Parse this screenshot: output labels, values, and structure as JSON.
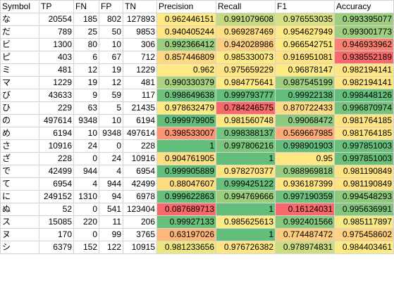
{
  "headers": [
    "Symbol",
    "TP",
    "FN",
    "FP",
    "TN",
    "Precision",
    "Recall",
    "F1",
    "Accuracy"
  ],
  "rows": [
    [
      "な",
      "20554",
      "185",
      "802",
      "127893",
      "0.962446151",
      "0.991079608",
      "0.976553035",
      "0.993395077"
    ],
    [
      "だ",
      "789",
      "25",
      "50",
      "9853",
      "0.940405244",
      "0.969287469",
      "0.954627949",
      "0.993001773"
    ],
    [
      "ビ",
      "1300",
      "80",
      "10",
      "306",
      "0.992366412",
      "0.942028986",
      "0.966542751",
      "0.946933962"
    ],
    [
      "ピ",
      "403",
      "6",
      "67",
      "712",
      "0.857446809",
      "0.985330073",
      "0.916951081",
      "0.938552189"
    ],
    [
      "ミ",
      "481",
      "12",
      "19",
      "1229",
      "0.962",
      "0.975659229",
      "0.96878147",
      "0.982194141"
    ],
    [
      "マ",
      "1229",
      "19",
      "12",
      "481",
      "0.990330379",
      "0.984775641",
      "0.987545199",
      "0.982194141"
    ],
    [
      "び",
      "43633",
      "9",
      "59",
      "117",
      "0.998649638",
      "0.999793777",
      "0.99922138",
      "0.998448126"
    ],
    [
      "ひ",
      "229",
      "63",
      "5",
      "21435",
      "0.978632479",
      "0.784246575",
      "0.870722433",
      "0.996870974"
    ],
    [
      "の",
      "497614",
      "9348",
      "10",
      "6194",
      "0.999979905",
      "0.981560748",
      "0.99068472",
      "0.981764185"
    ],
    [
      "め",
      "6194",
      "10",
      "9348",
      "497614",
      "0.398533007",
      "0.998388137",
      "0.569667985",
      "0.981764185"
    ],
    [
      "さ",
      "10916",
      "24",
      "0",
      "228",
      "1",
      "0.997806216",
      "0.998901903",
      "0.997851003"
    ],
    [
      "ざ",
      "228",
      "0",
      "24",
      "10916",
      "0.904761905",
      "1",
      "0.95",
      "0.997851003"
    ],
    [
      "で",
      "42499",
      "944",
      "4",
      "6954",
      "0.999905889",
      "0.978270377",
      "0.988969818",
      "0.981190849"
    ],
    [
      "て",
      "6954",
      "4",
      "944",
      "42499",
      "0.88047607",
      "0.999425122",
      "0.936187399",
      "0.981190849"
    ],
    [
      "に",
      "249152",
      "1310",
      "94",
      "6978",
      "0.999622863",
      "0.994769666",
      "0.997190359",
      "0.994548293"
    ],
    [
      "ぬ",
      "52",
      "0",
      "541",
      "123404",
      "0.087689713",
      "1",
      "0.16124031",
      "0.995636991"
    ],
    [
      "ス",
      "15085",
      "220",
      "11",
      "206",
      "0.99927133",
      "0.985625613",
      "0.992401566",
      "0.985117897"
    ],
    [
      "ヌ",
      "170",
      "0",
      "99",
      "3765",
      "0.63197026",
      "1",
      "0.774487472",
      "0.975458602"
    ],
    [
      "シ",
      "6379",
      "152",
      "122",
      "10915",
      "0.981233656",
      "0.976726382",
      "0.978974831",
      "0.984403461"
    ]
  ],
  "colors": {
    "red": "#f8696b",
    "yellow": "#ffeb84",
    "green": "#63be7b"
  }
}
